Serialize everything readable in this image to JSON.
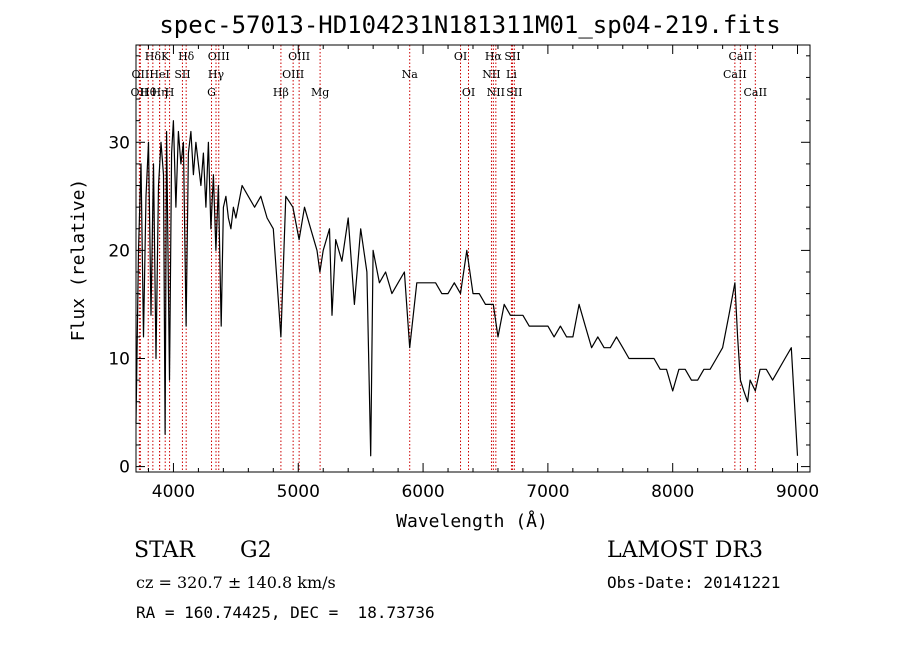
{
  "chart_data": {
    "type": "line",
    "title": "spec-57013-HD104231N181311M01_sp04-219.fits",
    "xlabel": "Wavelength (Å)",
    "ylabel": "Flux (relative)",
    "xlim": [
      3700,
      9100
    ],
    "ylim": [
      -0.5,
      39
    ],
    "x_ticks": [
      4000,
      5000,
      6000,
      7000,
      8000,
      9000
    ],
    "y_ticks": [
      0,
      10,
      20,
      30
    ],
    "grid": false,
    "line_color": "#000000",
    "marker_color": "#cc0000",
    "series": [
      {
        "x": [
          3700,
          3720,
          3740,
          3760,
          3780,
          3800,
          3820,
          3840,
          3860,
          3880,
          3900,
          3920,
          3933,
          3945,
          3968,
          3985,
          4000,
          4020,
          4040,
          4060,
          4080,
          4101,
          4120,
          4140,
          4160,
          4180,
          4200,
          4220,
          4240,
          4260,
          4280,
          4300,
          4320,
          4340,
          4360,
          4383,
          4400,
          4420,
          4440,
          4460,
          4480,
          4500,
          4550,
          4600,
          4650,
          4700,
          4750,
          4800,
          4861,
          4900,
          4957,
          5007,
          5050,
          5100,
          5150,
          5173,
          5200,
          5250,
          5270,
          5300,
          5350,
          5400,
          5450,
          5500,
          5550,
          5580,
          5600,
          5650,
          5700,
          5750,
          5800,
          5850,
          5893,
          5950,
          6000,
          6050,
          6100,
          6150,
          6200,
          6250,
          6300,
          6350,
          6400,
          6450,
          6500,
          6563,
          6600,
          6650,
          6700,
          6750,
          6800,
          6850,
          6900,
          6950,
          7000,
          7050,
          7100,
          7150,
          7200,
          7250,
          7300,
          7350,
          7400,
          7450,
          7500,
          7550,
          7600,
          7650,
          7700,
          7750,
          7800,
          7850,
          7900,
          7950,
          8000,
          8050,
          8100,
          8150,
          8200,
          8250,
          8300,
          8350,
          8400,
          8450,
          8498,
          8520,
          8542,
          8570,
          8600,
          8620,
          8662,
          8700,
          8750,
          8800,
          8850,
          8900,
          8950,
          9000
        ],
        "y": [
          4,
          20,
          28,
          12,
          25,
          30,
          14,
          28,
          10,
          26,
          30,
          27,
          3,
          31,
          8,
          29,
          32,
          24,
          31,
          28,
          30,
          13,
          29,
          31,
          27,
          30,
          28,
          26,
          29,
          24,
          30,
          22,
          27,
          20,
          26,
          13,
          24,
          25,
          23,
          22,
          24,
          23,
          26,
          25,
          24,
          25,
          23,
          22,
          12,
          25,
          24,
          21,
          24,
          22,
          20,
          18,
          20,
          22,
          14,
          21,
          19,
          23,
          15,
          22,
          18,
          1,
          20,
          17,
          18,
          16,
          17,
          18,
          11,
          17,
          17,
          17,
          17,
          16,
          16,
          17,
          16,
          20,
          16,
          16,
          15,
          15,
          12,
          15,
          14,
          14,
          14,
          13,
          13,
          13,
          13,
          12,
          13,
          12,
          12,
          15,
          13,
          11,
          12,
          11,
          11,
          12,
          11,
          10,
          10,
          10,
          10,
          10,
          9,
          9,
          7,
          9,
          9,
          8,
          8,
          9,
          9,
          10,
          11,
          14,
          17,
          12,
          8,
          7,
          6,
          8,
          7,
          9,
          9,
          8,
          9,
          10,
          11,
          1
        ]
      }
    ],
    "lines": [
      {
        "label": "OII",
        "x": 3727,
        "row": 2
      },
      {
        "label": "OII",
        "x": 3735,
        "row": 1
      },
      {
        "label": "Hθ",
        "x": 3798,
        "row": 2
      },
      {
        "label": "Hδ",
        "x": 3835,
        "row": 0
      },
      {
        "label": "HeI",
        "x": 3889,
        "row": 1
      },
      {
        "label": "Hη",
        "x": 3889,
        "row": 2
      },
      {
        "label": "K",
        "x": 3934,
        "row": 0
      },
      {
        "label": "H",
        "x": 3969,
        "row": 2
      },
      {
        "label": "SII",
        "x": 4072,
        "row": 1
      },
      {
        "label": "Hδ",
        "x": 4102,
        "row": 0
      },
      {
        "label": "OIII",
        "x": 4363,
        "row": 0
      },
      {
        "label": "Hγ",
        "x": 4341,
        "row": 1
      },
      {
        "label": "G",
        "x": 4305,
        "row": 2
      },
      {
        "label": "OIII",
        "x": 5007,
        "row": 0
      },
      {
        "label": "OIII",
        "x": 4959,
        "row": 1
      },
      {
        "label": "Hβ",
        "x": 4861,
        "row": 2
      },
      {
        "label": "Mg",
        "x": 5175,
        "row": 2
      },
      {
        "label": "Na",
        "x": 5893,
        "row": 1
      },
      {
        "label": "OI",
        "x": 6300,
        "row": 0
      },
      {
        "label": "OI",
        "x": 6364,
        "row": 2
      },
      {
        "label": "Hα",
        "x": 6563,
        "row": 0
      },
      {
        "label": "SII",
        "x": 6716,
        "row": 0
      },
      {
        "label": "NII",
        "x": 6548,
        "row": 1
      },
      {
        "label": "Li",
        "x": 6708,
        "row": 1
      },
      {
        "label": "NII",
        "x": 6583,
        "row": 2
      },
      {
        "label": "SII",
        "x": 6731,
        "row": 2
      },
      {
        "label": "CaII",
        "x": 8542,
        "row": 0
      },
      {
        "label": "CaII",
        "x": 8498,
        "row": 1
      },
      {
        "label": "CaII",
        "x": 8662,
        "row": 2
      }
    ]
  },
  "info": {
    "object_type": "STAR",
    "subclass": "G2",
    "survey": "LAMOST DR3",
    "redshift": "cz = 320.7 ± 140.8 km/s",
    "obs_date": "Obs-Date: 20141221",
    "coords": "RA = 160.74425, DEC =  18.73736"
  }
}
